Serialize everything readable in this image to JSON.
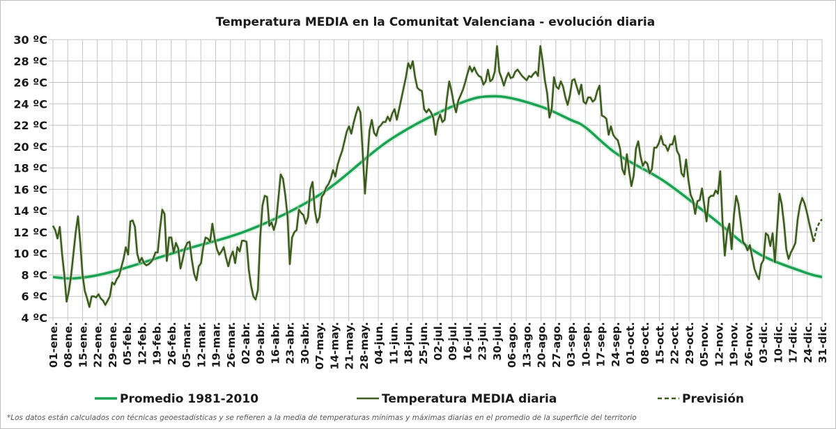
{
  "chart_data": {
    "type": "line",
    "title": "Temperatura MEDIA en la Comunitat Valenciana - evolución diaria",
    "xlabel": "",
    "ylabel": "",
    "ylim": [
      4,
      30
    ],
    "xlim": [
      0,
      364
    ],
    "grid": true,
    "y_ticks": [
      {
        "value": 4,
        "label": "4 ºC"
      },
      {
        "value": 6,
        "label": "6 ºC"
      },
      {
        "value": 8,
        "label": "8 ºC"
      },
      {
        "value": 10,
        "label": "10 ºC"
      },
      {
        "value": 12,
        "label": "12 ºC"
      },
      {
        "value": 14,
        "label": "14 ºC"
      },
      {
        "value": 16,
        "label": "16 ºC"
      },
      {
        "value": 18,
        "label": "18 ºC"
      },
      {
        "value": 20,
        "label": "20 ºC"
      },
      {
        "value": 22,
        "label": "22 ºC"
      },
      {
        "value": 24,
        "label": "24 ºC"
      },
      {
        "value": 26,
        "label": "26 ºC"
      },
      {
        "value": 28,
        "label": "28 ºC"
      },
      {
        "value": 30,
        "label": "30 ºC"
      }
    ],
    "x_tick_step_days": 7,
    "x_tick_labels": [
      "01-ene.",
      "08-ene.",
      "15-ene.",
      "22-ene.",
      "29-ene.",
      "05-feb.",
      "12-feb.",
      "19-feb.",
      "26-feb.",
      "05-mar.",
      "12-mar.",
      "19-mar.",
      "26-mar.",
      "02-abr.",
      "09-abr.",
      "16-abr.",
      "23-abr.",
      "30-abr.",
      "07-may.",
      "14-may.",
      "21-may.",
      "28-may.",
      "04-jun.",
      "11-jun.",
      "18-jun.",
      "25-jun.",
      "02-jul.",
      "09-jul.",
      "16-jul.",
      "23-jul.",
      "30-jul.",
      "06-ago.",
      "13-ago.",
      "20-ago.",
      "27-ago.",
      "03-sep.",
      "10-sep.",
      "17-sep.",
      "24-sep.",
      "01-oct.",
      "08-oct.",
      "15-oct.",
      "22-oct.",
      "29-oct.",
      "05-nov.",
      "12-nov.",
      "19-nov.",
      "26-nov.",
      "03-dic.",
      "10-dic.",
      "17-dic.",
      "24-dic.",
      "31-dic."
    ],
    "legend_position": "bottom",
    "series": [
      {
        "name": "Promedio 1981-2010",
        "color": "#1aa152",
        "style": "solid",
        "points": [
          [
            0,
            7.8
          ],
          [
            11,
            7.7
          ],
          [
            28,
            8.3
          ],
          [
            61,
            10.3
          ],
          [
            94,
            12.3
          ],
          [
            127,
            15.6
          ],
          [
            160,
            20.7
          ],
          [
            192,
            24.0
          ],
          [
            210,
            24.7
          ],
          [
            230,
            23.8
          ],
          [
            245,
            22.5
          ],
          [
            252,
            21.8
          ],
          [
            267,
            19.3
          ],
          [
            289,
            16.8
          ],
          [
            311,
            13.5
          ],
          [
            333,
            10.1
          ],
          [
            355,
            8.3
          ],
          [
            364,
            7.8
          ]
        ]
      },
      {
        "name": "Temperatura MEDIA diaria",
        "color": "#3a5a1e",
        "style": "solid",
        "x_start": 0,
        "x_end": 360,
        "values": [
          12.6,
          12.2,
          11.4,
          12.5,
          10,
          8,
          5.5,
          6.5,
          8,
          10,
          12,
          13.5,
          11,
          8,
          6.5,
          5.8,
          5.0,
          6,
          6,
          5.9,
          6.2,
          5.8,
          5.6,
          5.2,
          5.6,
          6,
          7.3,
          7.1,
          7.6,
          7.9,
          8.7,
          9.5,
          10.6,
          9.9,
          13.0,
          13.1,
          12.5,
          10,
          9.2,
          9.6,
          9.1,
          8.9,
          9.0,
          9.2,
          9.5,
          10.1,
          10.1,
          12.3,
          14.1,
          13.7,
          9.3,
          11.5,
          11.5,
          10.1,
          11,
          10.5,
          8.6,
          9.5,
          10.5,
          11,
          11.1,
          9.4,
          8.1,
          7.5,
          8.8,
          9.1,
          10.6,
          11.5,
          11.4,
          11.1,
          12.8,
          11.4,
          10.4,
          9.9,
          10.2,
          10.6,
          9.6,
          8.8,
          9.7,
          10.2,
          9.1,
          10.6,
          10.2,
          11.2,
          11.2,
          11.1,
          8.5,
          7,
          6,
          5.7,
          6.6,
          11.5,
          14.5,
          15.4,
          15.3,
          12.6,
          12.9,
          12.2,
          13.0,
          15.2,
          17.4,
          17.0,
          15.5,
          13.5,
          9.0,
          11.5,
          12.0,
          12.2,
          14.1,
          13.8,
          13.6,
          12.8,
          13.4,
          16.0,
          16.7,
          14.0,
          12.9,
          13.4,
          15.3,
          15.6,
          16.2,
          16.5,
          17.0,
          17.8,
          17.2,
          18.3,
          19.0,
          19.6,
          20.5,
          21.4,
          21.9,
          21.2,
          22.2,
          23.0,
          23.7,
          23.2,
          19.5,
          15.6,
          18.5,
          21.5,
          22.5,
          21.3,
          21.0,
          21.8,
          22.0,
          22.3,
          22.3,
          22.8,
          22.4,
          23.1,
          23.5,
          22.5,
          23.5,
          24.5,
          25.5,
          26.5,
          27.8,
          27.3,
          28.0,
          26.5,
          25.5,
          25.3,
          25.2,
          23.5,
          23.2,
          23.5,
          23.2,
          22.7,
          21.1,
          22.4,
          23.0,
          22.3,
          22.5,
          24.5,
          26.1,
          25.2,
          24.0,
          23.2,
          24.3,
          24.8,
          25.3,
          26.0,
          26.8,
          27.5,
          27.0,
          27.4,
          26.9,
          26.6,
          26.5,
          25.8,
          26.1,
          27.2,
          26.1,
          26.3,
          27.0,
          29.4,
          27.0,
          26.4,
          25.7,
          26.4,
          26.9,
          26.4,
          26.5,
          27.0,
          27.2,
          26.9,
          26.6,
          26.4,
          26.2,
          26.6,
          26.5,
          26.8,
          27.0,
          26.6,
          29.4,
          28.0,
          26.2,
          25.0,
          22.7,
          23.5,
          26.5,
          25.6,
          25.4,
          26.1,
          25.6,
          24.6,
          23.9,
          24.8,
          26.2,
          26.3,
          25.6,
          24.9,
          25.8,
          24.2,
          24.0,
          24.6,
          24.6,
          24.2,
          24.4,
          25.2,
          25.7,
          22.9,
          22.8,
          22.6,
          21.1,
          21.9,
          21.1,
          20.8,
          20.6,
          19.8,
          17.9,
          17.4,
          19.3,
          17.7,
          16.3,
          17.3,
          19.8,
          20.5,
          19.1,
          18.2,
          18.6,
          18.4,
          17.5,
          17.9,
          19.9,
          19.9,
          20.3,
          21.0,
          20.2,
          20.1,
          19.6,
          20.2,
          20.2,
          21.0,
          19.6,
          19.2,
          17.5,
          17.2,
          18.8,
          16.9,
          15.5,
          15.0,
          13.7,
          14.9,
          15.0,
          16.1,
          14.5,
          13.0,
          15.2,
          15.4,
          15.4,
          15.9,
          15.6,
          17.7,
          13.0,
          9.8,
          12.0,
          12.8,
          10.4,
          13.6,
          15.4,
          14.6,
          12.9,
          11.1,
          10.8,
          10.3,
          10.8,
          9.7,
          8.6,
          8.0,
          7.6,
          9.0,
          9.4,
          11.9,
          11.7,
          10.7,
          11.9,
          9.2,
          12.4,
          15.6,
          14.6,
          12.8,
          10.4,
          9.5,
          10.1,
          10.5,
          11.0,
          13.2,
          14.5,
          15.2,
          14.7,
          13.9,
          12.9,
          12.0,
          11.1
        ]
      },
      {
        "name": "Previsión",
        "color": "#3a5a1e",
        "style": "dashed",
        "points": [
          [
            360,
            11.1
          ],
          [
            361.5,
            12.4
          ],
          [
            363,
            13.0
          ],
          [
            364,
            13.2
          ]
        ]
      }
    ],
    "footnote": "*Los datos están calculados con técnicas geoestadísticas y se refieren a la media de temperaturas mínimas y máximas diarias en el promedio de la superficie del territorio"
  }
}
